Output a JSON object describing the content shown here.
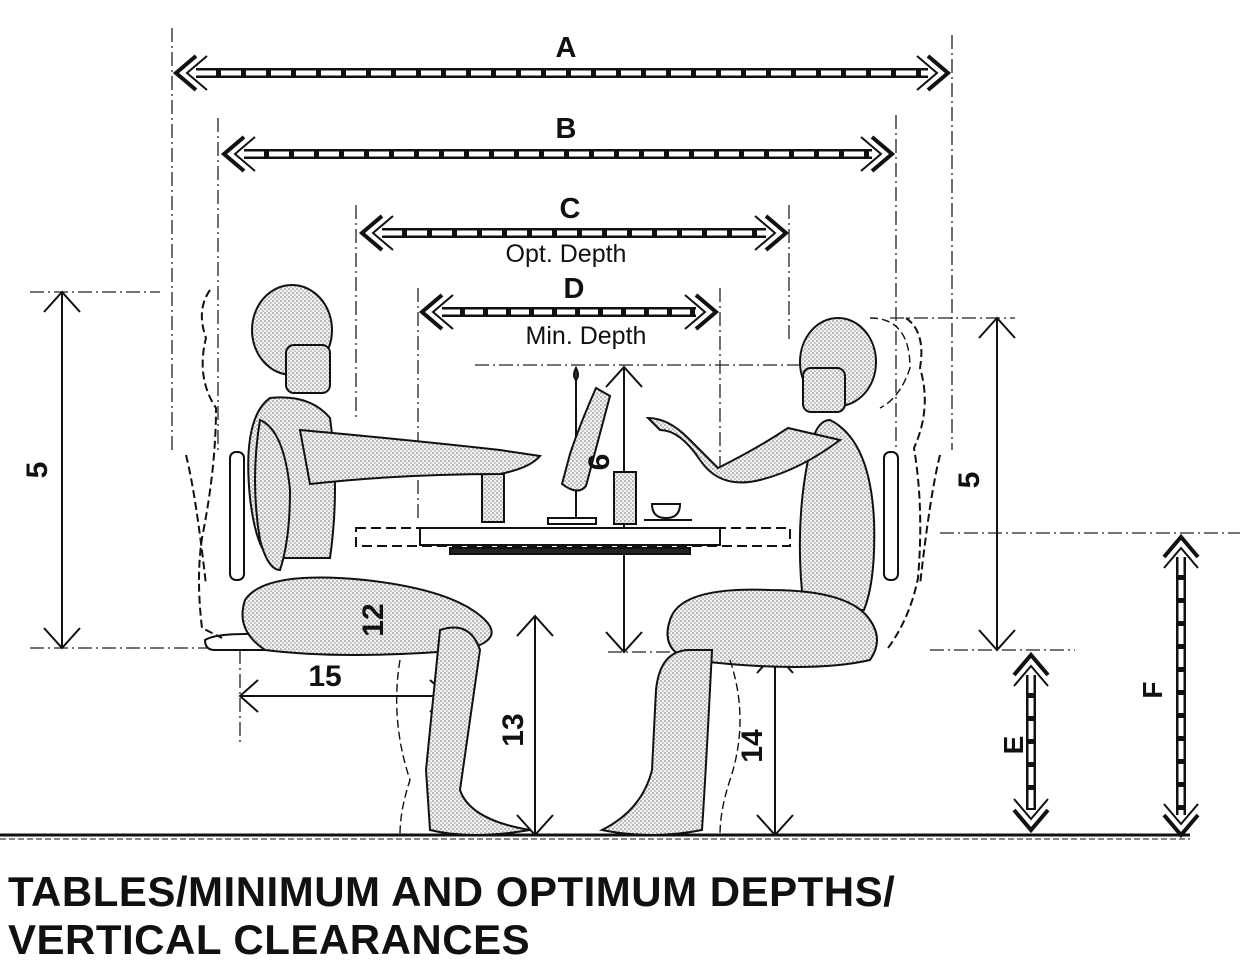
{
  "dimensions": {
    "A": "A",
    "B": "B",
    "C": "C",
    "C_caption": "Opt. Depth",
    "D": "D",
    "D_caption": "Min. Depth",
    "E": "E",
    "F": "F"
  },
  "measurements": {
    "left_seat_to_head": "5",
    "right_seat_to_head": "5",
    "table_to_head": "6",
    "thigh_clearance": "12",
    "buttock_knee": "15",
    "popliteal_left": "13",
    "popliteal_right": "14"
  },
  "title": {
    "line1": "TABLES/MINIMUM AND OPTIMUM DEPTHS/",
    "line2": "VERTICAL CLEARANCES"
  }
}
